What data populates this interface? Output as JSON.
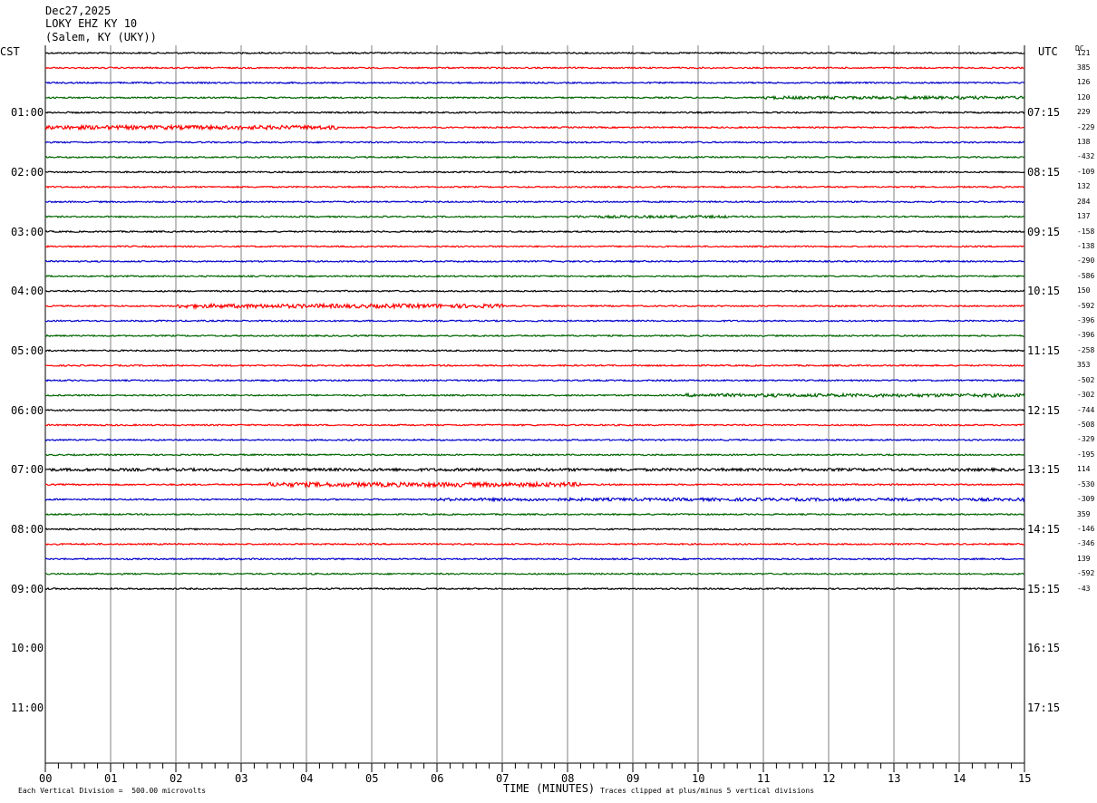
{
  "header": {
    "date": "Dec27,2025",
    "station": "LOKY EHZ KY 10",
    "location": "(Salem, KY (UKY))"
  },
  "left_timezone": "CST",
  "right_timezone": "UTC",
  "dc_label": "DC",
  "footer": {
    "scale_note": "Each Vertical Division =  500.00 microvolts",
    "xlabel": "TIME (MINUTES)",
    "clip_note": "Traces clipped at plus/minus 5 vertical divisions"
  },
  "chart_data": {
    "type": "line",
    "title": "",
    "xlabel": "TIME (MINUTES)",
    "xlim": [
      0,
      15
    ],
    "x_ticks": [
      "00",
      "01",
      "02",
      "03",
      "04",
      "05",
      "06",
      "07",
      "08",
      "09",
      "10",
      "11",
      "12",
      "13",
      "14",
      "15"
    ],
    "rows_per_hour": 4,
    "total_rows": 48,
    "trace_colors": [
      "#000000",
      "#ff0000",
      "#0000cc",
      "#006600"
    ],
    "left_hour_labels": [
      "01:00",
      "02:00",
      "03:00",
      "04:00",
      "05:00",
      "06:00",
      "07:00",
      "08:00",
      "09:00",
      "10:00",
      "11:00"
    ],
    "right_hour_labels": [
      "07:15",
      "08:15",
      "09:15",
      "10:15",
      "11:15",
      "12:15",
      "13:15",
      "14:15",
      "15:15",
      "16:15",
      "17:15"
    ],
    "traces": [
      {
        "dc": "121",
        "bursts": []
      },
      {
        "dc": "385",
        "bursts": []
      },
      {
        "dc": "126",
        "bursts": []
      },
      {
        "dc": "120",
        "bursts": [
          [
            11,
            15,
            1.6
          ]
        ]
      },
      {
        "dc": "229",
        "bursts": []
      },
      {
        "dc": "-229",
        "bursts": [
          [
            0,
            4.5,
            2.2
          ]
        ]
      },
      {
        "dc": "138",
        "bursts": []
      },
      {
        "dc": "-432",
        "bursts": []
      },
      {
        "dc": "-109",
        "bursts": []
      },
      {
        "dc": "132",
        "bursts": []
      },
      {
        "dc": "284",
        "bursts": []
      },
      {
        "dc": "137",
        "bursts": [
          [
            8,
            10.5,
            1.4
          ]
        ]
      },
      {
        "dc": "-158",
        "bursts": []
      },
      {
        "dc": "-138",
        "bursts": []
      },
      {
        "dc": "-290",
        "bursts": []
      },
      {
        "dc": "-586",
        "bursts": []
      },
      {
        "dc": "150",
        "bursts": []
      },
      {
        "dc": "-592",
        "bursts": [
          [
            2,
            7,
            2.2
          ]
        ]
      },
      {
        "dc": "-396",
        "bursts": []
      },
      {
        "dc": "-396",
        "bursts": []
      },
      {
        "dc": "-258",
        "bursts": []
      },
      {
        "dc": "353",
        "bursts": []
      },
      {
        "dc": "-502",
        "bursts": []
      },
      {
        "dc": "-302",
        "bursts": [
          [
            9.8,
            15,
            1.8
          ]
        ]
      },
      {
        "dc": "-744",
        "bursts": []
      },
      {
        "dc": "-508",
        "bursts": []
      },
      {
        "dc": "-329",
        "bursts": []
      },
      {
        "dc": "-195",
        "bursts": []
      },
      {
        "dc": "114",
        "bursts": [
          [
            0,
            15,
            1.5
          ]
        ]
      },
      {
        "dc": "-530",
        "bursts": [
          [
            3.4,
            8.2,
            2.4
          ]
        ]
      },
      {
        "dc": "-309",
        "bursts": [
          [
            6,
            15,
            1.6
          ]
        ]
      },
      {
        "dc": "359",
        "bursts": []
      },
      {
        "dc": "-146",
        "bursts": []
      },
      {
        "dc": "-346",
        "bursts": []
      },
      {
        "dc": "139",
        "bursts": []
      },
      {
        "dc": "-592",
        "bursts": []
      },
      {
        "dc": "-43",
        "bursts": []
      }
    ]
  }
}
